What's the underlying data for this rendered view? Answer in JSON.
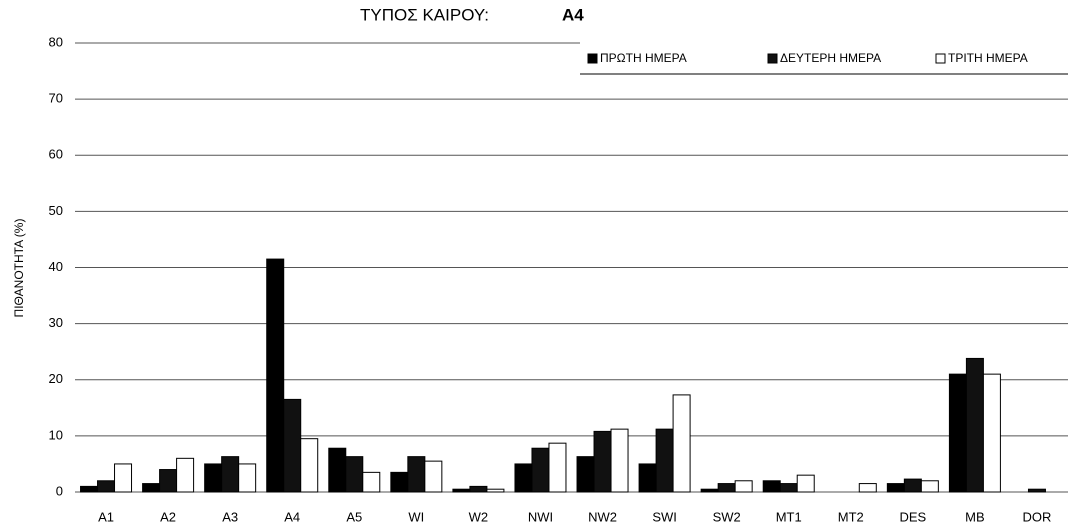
{
  "chart_data": {
    "type": "bar",
    "title": "ΤΥΠΟΣ ΚΑΙΡΟΥ:",
    "title_highlight": "A4",
    "y_label": "ΠΙΘΑΝΟΤΗΤΑ (%)",
    "categories": [
      "A1",
      "A2",
      "A3",
      "A4",
      "A5",
      "WI",
      "W2",
      "NWI",
      "NW2",
      "SWI",
      "SW2",
      "MT1",
      "MT2",
      "DES",
      "MB",
      "DOR"
    ],
    "series": [
      {
        "name": "ΠΡΩΤΗ ΗΜΕΡΑ",
        "color": "#000000",
        "values": [
          1,
          1.5,
          5,
          41.5,
          7.8,
          3.5,
          0.5,
          5,
          6.3,
          5,
          0.5,
          2,
          0,
          1.5,
          21,
          0
        ]
      },
      {
        "name": "ΔΕΥΤΕΡΗ ΗΜΕΡΑ",
        "color": "#111111",
        "values": [
          2,
          4,
          6.3,
          16.5,
          6.3,
          6.3,
          1,
          7.8,
          10.8,
          11.2,
          1.5,
          1.5,
          0,
          2.3,
          23.8,
          0.5
        ]
      },
      {
        "name": "ΤΡΙΤΗ ΗΜΕΡΑ",
        "color": "#ffffff",
        "values": [
          5,
          6,
          5,
          9.5,
          3.5,
          5.5,
          0.5,
          8.7,
          11.2,
          17.3,
          2,
          3,
          1.5,
          2,
          21,
          0
        ]
      }
    ],
    "ylim": [
      0,
      80
    ],
    "yticks": [
      0,
      10,
      20,
      30,
      40,
      50,
      60,
      70,
      80
    ],
    "grid": true,
    "legend": "top-right"
  }
}
